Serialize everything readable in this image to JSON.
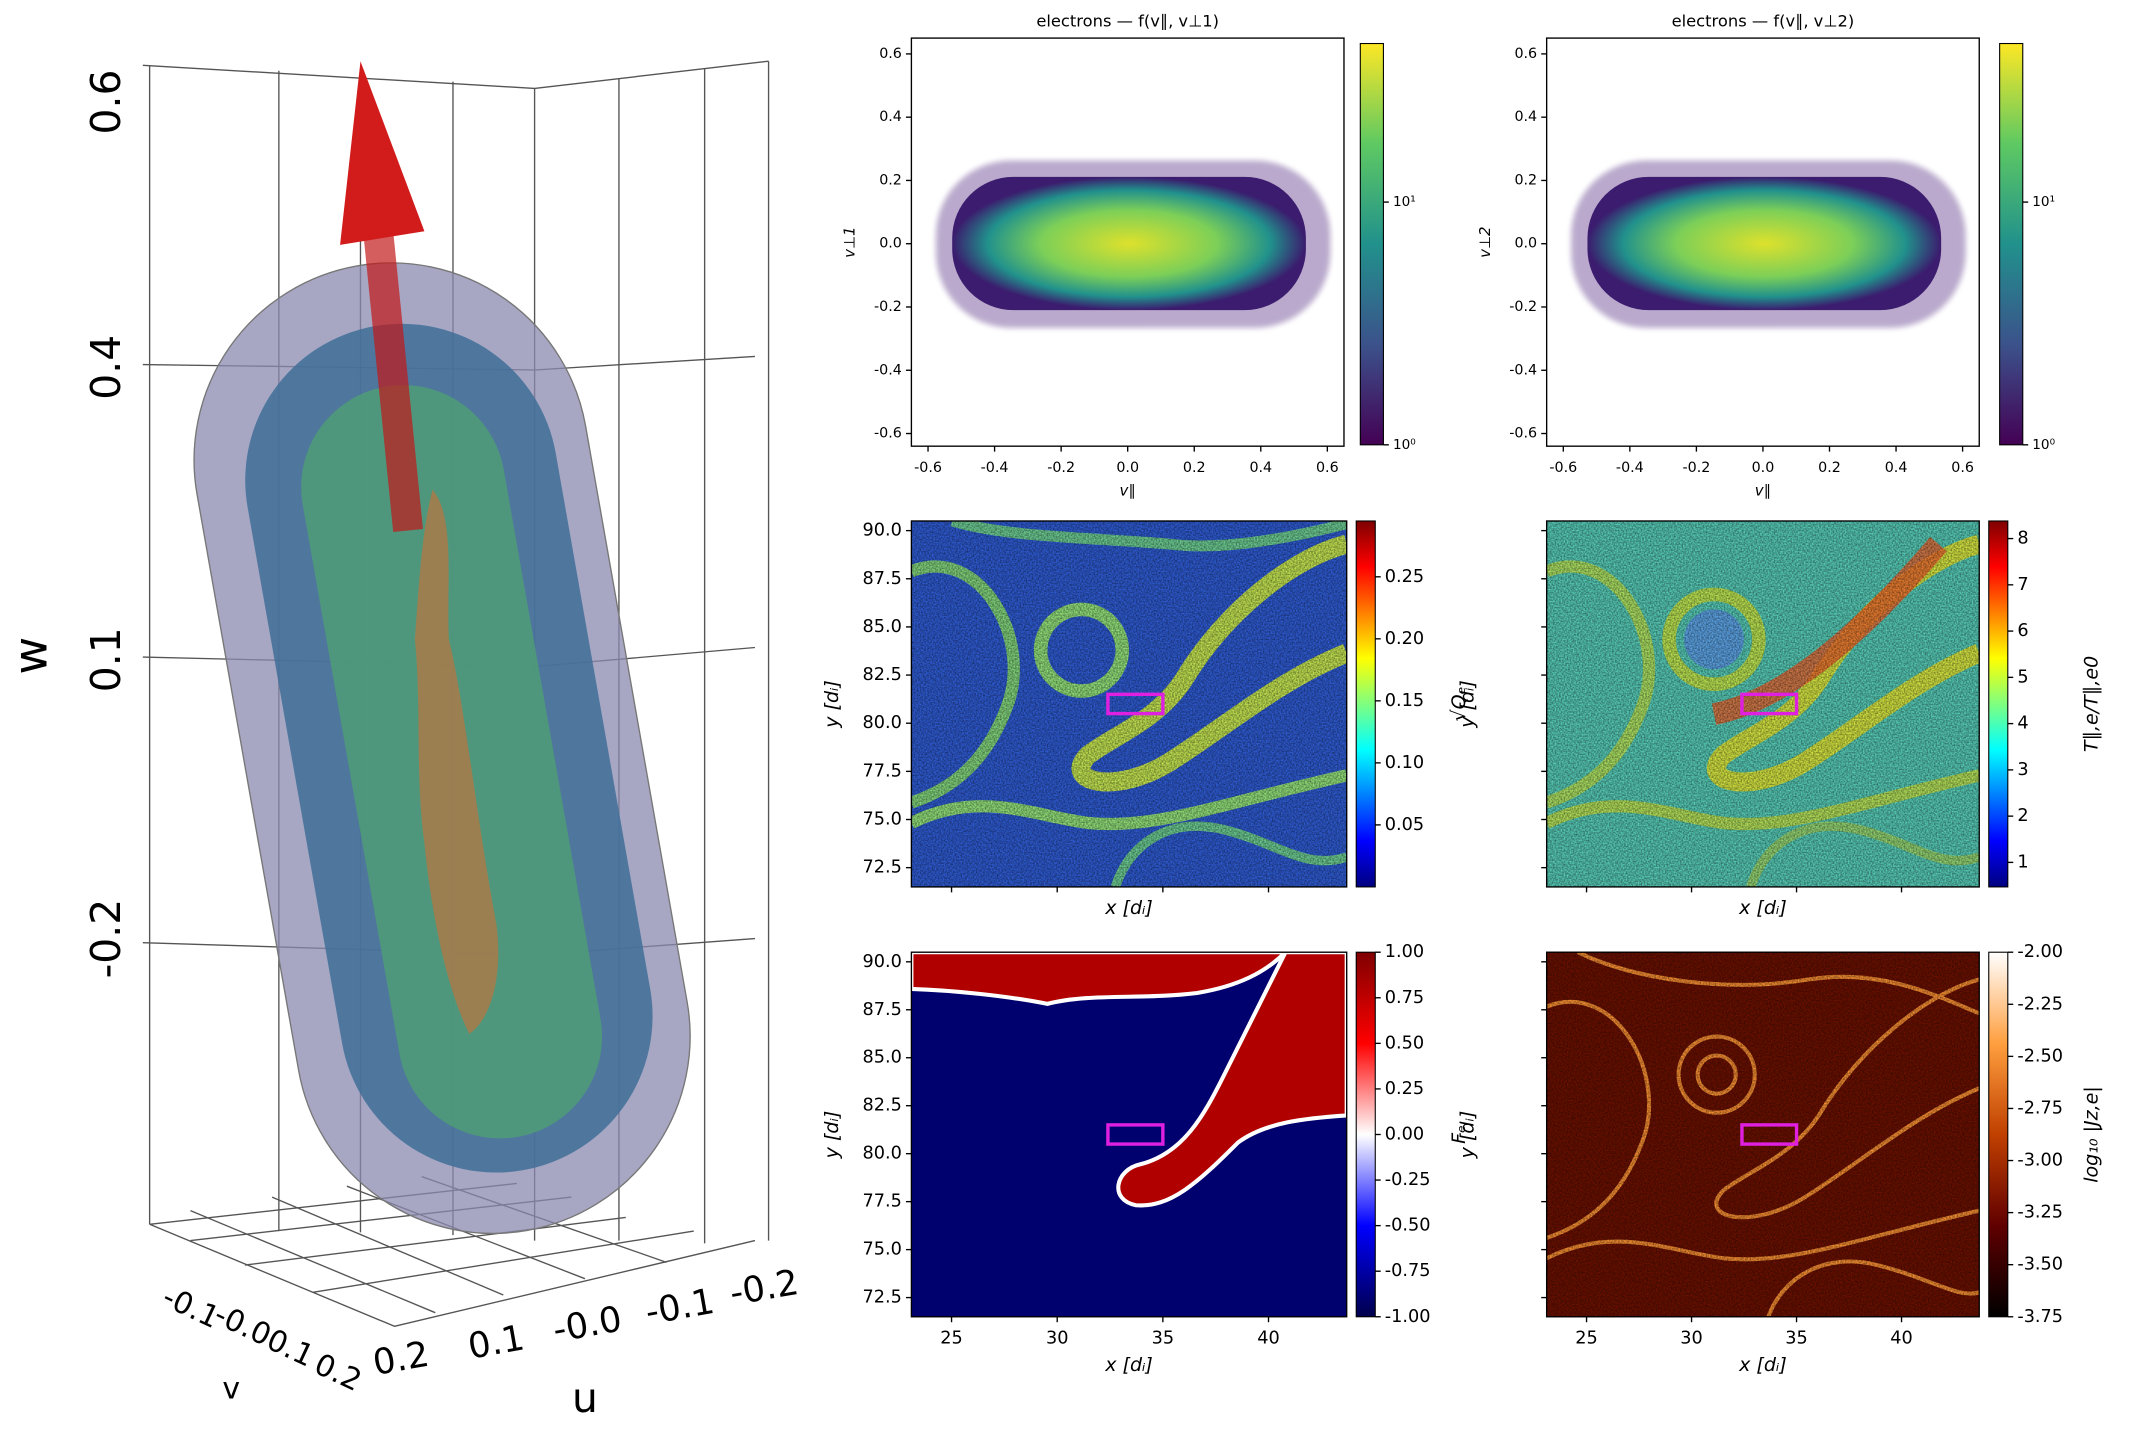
{
  "chart_data": [
    {
      "type": "isosurface3d",
      "wlabel": "w",
      "ulabel": "u",
      "vlabel": "v",
      "wticks": [
        0.6,
        0.4,
        0.1,
        -0.2
      ],
      "uticks": [
        0.2,
        0.1,
        {
          "value": 0,
          "label": "-0.0"
        },
        -0.1,
        -0.2
      ],
      "vticks": [
        -0.1,
        {
          "value": 0,
          "label": "-0.0"
        },
        0.1,
        0.2
      ]
    },
    {
      "type": "hist2d",
      "title": "electrons — f(v∥, v⊥1)",
      "xlabel": "v∥",
      "ylabel": "v⊥1",
      "xlim": [
        -0.65,
        0.65
      ],
      "ylim": [
        -0.64,
        0.65
      ],
      "xticks": [
        -0.6,
        -0.4,
        -0.2,
        {
          "value": 0,
          "label": "0.0"
        },
        0.2,
        0.4,
        0.6
      ],
      "yticks": [
        -0.6,
        -0.4,
        -0.2,
        {
          "value": 0,
          "label": "0.0"
        },
        0.2,
        0.4,
        0.6
      ],
      "colorbar": {
        "colormap": "viridis",
        "scale": "log",
        "lim": [
          1,
          45
        ],
        "ticks": [
          {
            "value": 1,
            "label": "10⁰"
          },
          {
            "value": 10,
            "label": "10¹"
          }
        ]
      }
    },
    {
      "type": "hist2d",
      "title": "electrons — f(v∥, v⊥2)",
      "xlabel": "v∥",
      "ylabel": "v⊥2",
      "xlim": [
        -0.65,
        0.65
      ],
      "ylim": [
        -0.64,
        0.65
      ],
      "xticks": [
        -0.6,
        -0.4,
        -0.2,
        {
          "value": 0,
          "label": "0.0"
        },
        0.2,
        0.4,
        0.6
      ],
      "yticks": [
        -0.6,
        -0.4,
        -0.2,
        {
          "value": 0,
          "label": "0.0"
        },
        0.2,
        0.4,
        0.6
      ],
      "colorbar": {
        "colormap": "viridis",
        "scale": "log",
        "lim": [
          1,
          45
        ],
        "ticks": [
          {
            "value": 1,
            "label": "10⁰"
          },
          {
            "value": 10,
            "label": "10¹"
          }
        ]
      }
    },
    {
      "type": "heatmap",
      "xlabel": "x [dᵢ]",
      "ylabel": "y [dᵢ]",
      "xlim": [
        23.1,
        43.7
      ],
      "ylim": [
        71.5,
        90.5
      ],
      "xticks": [
        25,
        30,
        35,
        40
      ],
      "xtick_labels": false,
      "yticks": [
        72.5,
        {
          "value": 75,
          "label": "75.0"
        },
        77.5,
        {
          "value": 80,
          "label": "80.0"
        },
        82.5,
        {
          "value": 85,
          "label": "85.0"
        },
        87.5,
        {
          "value": 90,
          "label": "90.0"
        }
      ],
      "ytick_labels": true,
      "colorbar": {
        "colormap": "jet",
        "label": "√Qₑ",
        "lim": [
          0,
          0.295
        ],
        "ticks": [
          0.05,
          {
            "value": 0.1,
            "label": "0.10"
          },
          0.15,
          {
            "value": 0.2,
            "label": "0.20"
          },
          0.25
        ]
      },
      "highlight_box": {
        "x": [
          32.4,
          35.0
        ],
        "y": [
          80.5,
          81.5
        ],
        "color": "#e020e0"
      }
    },
    {
      "type": "heatmap",
      "xlabel": "x [dᵢ]",
      "ylabel": "y [dᵢ]",
      "xlim": [
        23.1,
        43.7
      ],
      "ylim": [
        71.5,
        90.5
      ],
      "xticks": [
        25,
        30,
        35,
        40
      ],
      "xtick_labels": false,
      "yticks": [
        72.5,
        {
          "value": 75,
          "label": "75.0"
        },
        77.5,
        {
          "value": 80,
          "label": "80.0"
        },
        82.5,
        {
          "value": 85,
          "label": "85.0"
        },
        87.5,
        {
          "value": 90,
          "label": "90.0"
        }
      ],
      "ytick_labels": false,
      "colorbar": {
        "colormap": "jet",
        "label": "T∥,e/T∥,e0",
        "lim": [
          0.47,
          8.38
        ],
        "ticks": [
          1,
          2,
          3,
          4,
          5,
          6,
          7,
          8
        ]
      },
      "highlight_box": {
        "x": [
          32.4,
          35.0
        ],
        "y": [
          80.5,
          81.5
        ],
        "color": "#e020e0"
      }
    },
    {
      "type": "heatmap",
      "xlabel": "x [dᵢ]",
      "ylabel": "y [dᵢ]",
      "xlim": [
        23.1,
        43.7
      ],
      "ylim": [
        71.5,
        90.5
      ],
      "xticks": [
        25,
        30,
        35,
        40
      ],
      "xtick_labels": true,
      "yticks": [
        72.5,
        {
          "value": 75,
          "label": "75.0"
        },
        77.5,
        {
          "value": 80,
          "label": "80.0"
        },
        82.5,
        {
          "value": 85,
          "label": "85.0"
        },
        87.5,
        {
          "value": 90,
          "label": "90.0"
        }
      ],
      "ytick_labels": true,
      "colorbar": {
        "colormap": "seismic",
        "label": "Fₑ",
        "lim": [
          -1,
          1
        ],
        "ticks": [
          {
            "value": -1,
            "label": "-1.00"
          },
          -0.75,
          {
            "value": -0.5,
            "label": "-0.50"
          },
          -0.25,
          {
            "value": 0,
            "label": "0.00"
          },
          0.25,
          {
            "value": 0.5,
            "label": "0.50"
          },
          0.75,
          {
            "value": 1,
            "label": "1.00"
          }
        ]
      },
      "highlight_box": {
        "x": [
          32.4,
          35.0
        ],
        "y": [
          80.5,
          81.5
        ],
        "color": "#e020e0"
      }
    },
    {
      "type": "heatmap",
      "xlabel": "x [dᵢ]",
      "ylabel": "y [dᵢ]",
      "xlim": [
        23.1,
        43.7
      ],
      "ylim": [
        71.5,
        90.5
      ],
      "xticks": [
        25,
        30,
        35,
        40
      ],
      "xtick_labels": true,
      "yticks": [
        72.5,
        {
          "value": 75,
          "label": "75.0"
        },
        77.5,
        {
          "value": 80,
          "label": "80.0"
        },
        82.5,
        {
          "value": 85,
          "label": "85.0"
        },
        87.5,
        {
          "value": 90,
          "label": "90.0"
        }
      ],
      "ytick_labels": false,
      "colorbar": {
        "colormap": "gist_heat",
        "label": "log₁₀ |Jz,e|",
        "lim": [
          -3.75,
          -2.0
        ],
        "ticks": [
          -3.75,
          {
            "value": -3.5,
            "label": "-3.50"
          },
          -3.25,
          {
            "value": -3,
            "label": "-3.00"
          },
          -2.75,
          {
            "value": -2.5,
            "label": "-2.50"
          },
          -2.25,
          {
            "value": -2,
            "label": "-2.00"
          }
        ]
      },
      "highlight_box": {
        "x": [
          32.4,
          35.0
        ],
        "y": [
          80.5,
          81.5
        ],
        "color": "#e020e0"
      }
    }
  ]
}
